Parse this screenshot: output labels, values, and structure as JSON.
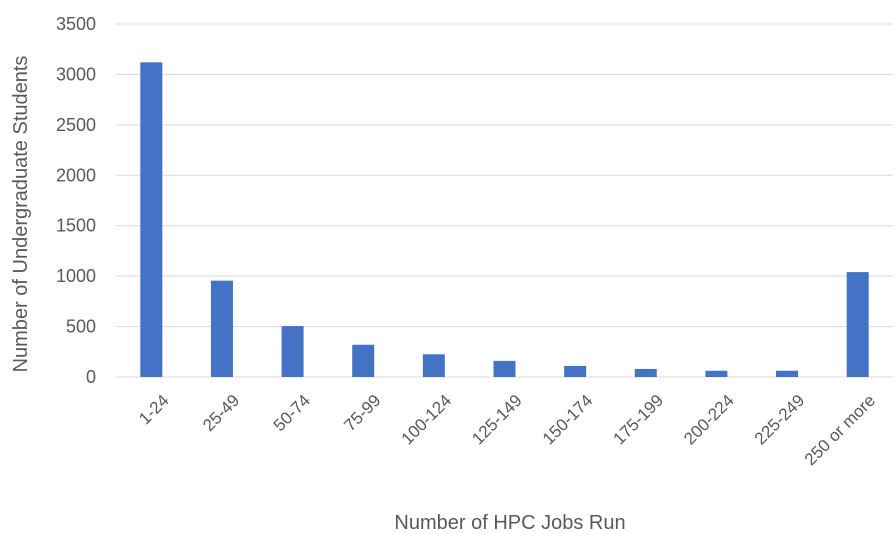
{
  "chart_data": {
    "type": "bar",
    "categories": [
      "1-24",
      "25-49",
      "50-74",
      "75-99",
      "100-124",
      "125-149",
      "150-174",
      "175-199",
      "200-224",
      "225-249",
      "250 or more"
    ],
    "values": [
      3120,
      955,
      505,
      320,
      225,
      160,
      110,
      80,
      62,
      62,
      1040
    ],
    "xlabel": "Number of HPC Jobs Run",
    "ylabel": "Number  of Undergraduate Students",
    "ylim": [
      0,
      3500
    ],
    "yticks": [
      0,
      500,
      1000,
      1500,
      2000,
      2500,
      3000,
      3500
    ],
    "grid": true,
    "legend": "none",
    "bar_color": "#4472c4"
  }
}
